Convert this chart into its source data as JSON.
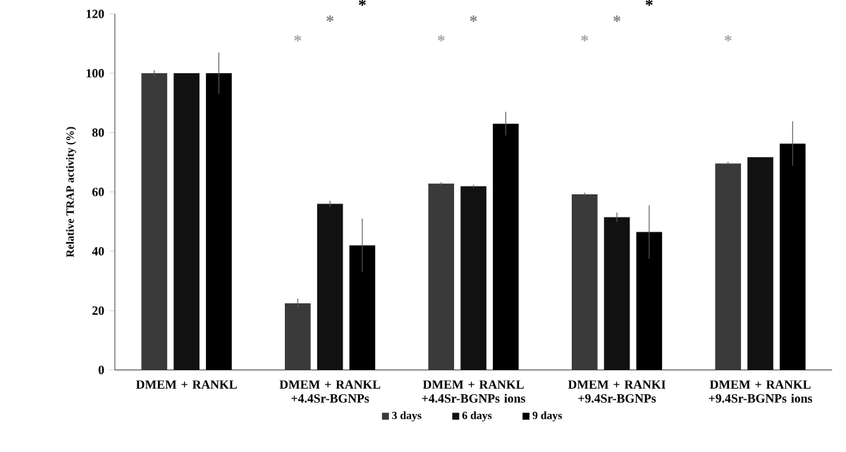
{
  "chart_data": {
    "type": "bar",
    "ylabel": "Relative TRAP activity (%)",
    "categories": [
      "DMEM + RANKL",
      "DMEM + RANKL +4.4Sr-BGNPs",
      "DMEM + RANKL +4.4Sr-BGNPs ions",
      "DMEM + RANKI +9.4Sr-BGNPs",
      "DMEM + RANKL +9.4Sr-BGNPs ions"
    ],
    "series": [
      {
        "name": "3 days",
        "color": "#3a3a3a",
        "values": [
          100,
          22.5,
          62.8,
          59.2,
          69.6
        ],
        "errors": [
          1,
          1.5,
          0.5,
          0.5,
          0.5
        ]
      },
      {
        "name": "6 days",
        "color": "#111111",
        "values": [
          100,
          56,
          61.9,
          51.5,
          71.7
        ],
        "errors": [
          null,
          1,
          0.5,
          1.5,
          null
        ]
      },
      {
        "name": "9 days",
        "color": "#000000",
        "values": [
          100,
          42,
          83,
          46.5,
          76.3
        ],
        "errors": [
          7,
          9,
          4,
          9,
          7.5
        ]
      }
    ],
    "ylim": [
      0,
      120
    ],
    "yticks": [
      0,
      20,
      40,
      60,
      80,
      100,
      120
    ],
    "grid": false,
    "legend": "bottom",
    "annotations": [
      "*",
      "*",
      "*",
      "*",
      "*",
      "*",
      "*",
      "*",
      "*"
    ]
  }
}
